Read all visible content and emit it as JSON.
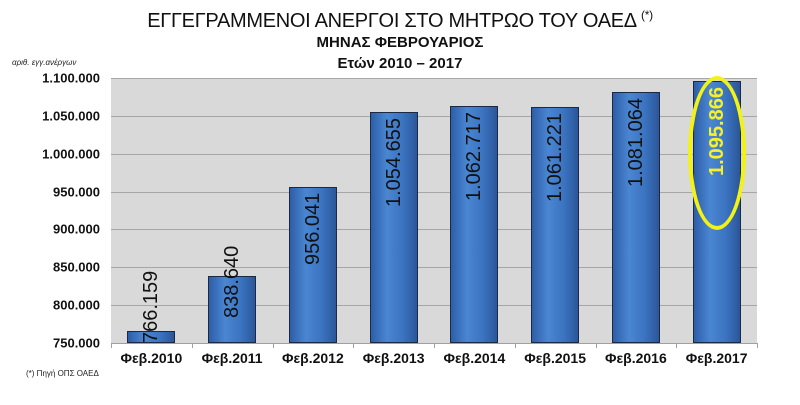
{
  "header": {
    "title": "ΕΓΓΕΓΡΑΜΜΕΝΟΙ ΑΝΕΡΓΟΙ ΣΤΟ ΜΗΤΡΩΟ ΤΟΥ ΟΑΕΔ",
    "title_note": "(*)",
    "subtitle": "ΜΗΝΑΣ ΦΕΒΡΟΥΑΡΙΟΣ",
    "years": "Ετών  2010 – 2017"
  },
  "axis": {
    "ylabel": "αριθ. εγγ.ανέργων",
    "yticks": [
      "1.100.000",
      "1.050.000",
      "1.000.000",
      "950.000",
      "900.000",
      "850.000",
      "800.000",
      "750.000"
    ]
  },
  "footnote": "(*) Πηγή ΟΠΣ ΟΑΕΔ",
  "bars": [
    {
      "category": "Φεβ.2010",
      "label": "766.159"
    },
    {
      "category": "Φεβ.2011",
      "label": "838.640"
    },
    {
      "category": "Φεβ.2012",
      "label": "956.041"
    },
    {
      "category": "Φεβ.2013",
      "label": "1.054.655"
    },
    {
      "category": "Φεβ.2014",
      "label": "1.062.717"
    },
    {
      "category": "Φεβ.2015",
      "label": "1.061.221"
    },
    {
      "category": "Φεβ.2016",
      "label": "1.081.064"
    },
    {
      "category": "Φεβ.2017",
      "label": "1.095.866"
    }
  ],
  "colors": {
    "bar": "#3a73c0",
    "plot_background": "#d9d9d9",
    "highlight": "#f2f215"
  },
  "chart_data": {
    "type": "bar",
    "title": "ΕΓΓΕΓΡΑΜΜΕΝΟΙ ΑΝΕΡΓΟΙ ΣΤΟ ΜΗΤΡΩΟ ΤΟΥ ΟΑΕΔ (*)",
    "subtitle": "ΜΗΝΑΣ ΦΕΒΡΟΥΑΡΙΟΣ — Ετών 2010 – 2017",
    "categories": [
      "Φεβ.2010",
      "Φεβ.2011",
      "Φεβ.2012",
      "Φεβ.2013",
      "Φεβ.2014",
      "Φεβ.2015",
      "Φεβ.2016",
      "Φεβ.2017"
    ],
    "values": [
      766159,
      838640,
      956041,
      1054655,
      1062717,
      1061221,
      1081064,
      1095866
    ],
    "xlabel": "",
    "ylabel": "αριθ. εγγ.ανέργων",
    "ylim": [
      750000,
      1100000
    ],
    "ytick_step": 50000,
    "grid": true,
    "legend": null,
    "annotations": [
      "Φεβ.2017 value 1.095.866 highlighted with yellow ellipse",
      "(*) Πηγή ΟΠΣ ΟΑΕΔ"
    ]
  }
}
